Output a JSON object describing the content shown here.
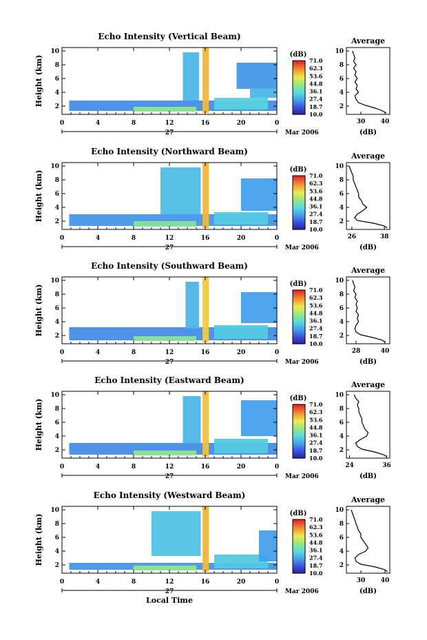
{
  "chart_data": [
    {
      "type": "heatmap",
      "title": "Echo Intensity (Vertical Beam)",
      "ylabel": "Height (km)",
      "x_ticks": [
        "0",
        "4",
        "8",
        "12",
        "16",
        "20",
        "0"
      ],
      "y_ticks": [
        "2",
        "4",
        "6",
        "8",
        "10"
      ],
      "xlim": [
        0,
        24
      ],
      "ylim": [
        0.8,
        10.5
      ],
      "date_day": "27",
      "date_month": "Mar 2006",
      "colorbar": {
        "label": "(dB)",
        "ticks": [
          "71.0",
          "62.3",
          "53.6",
          "44.8",
          "36.1",
          "27.4",
          "18.7",
          "10.0"
        ]
      },
      "average": {
        "title": "Average",
        "xlabel": "(dB)",
        "x_ticks": [
          "30",
          "40"
        ],
        "xlim": [
          24,
          42
        ],
        "y_ticks": [
          "2",
          "4",
          "6",
          "8",
          "10"
        ],
        "profile_x": [
          40.5,
          39,
          36,
          32,
          29,
          28,
          27.5,
          29,
          28,
          28.5,
          27.5,
          28.5,
          27.5,
          28,
          27,
          28,
          27,
          27.5,
          27,
          26.5
        ],
        "profile_y": [
          1,
          1.3,
          1.7,
          2.1,
          2.5,
          3,
          3.5,
          4,
          4.5,
          5,
          5.5,
          6,
          6.5,
          7,
          7.5,
          8,
          8.5,
          9,
          9.5,
          10
        ]
      },
      "clouds": [
        {
          "x0": 0.8,
          "x1": 24,
          "y0": 1.3,
          "y1": 2.8,
          "v": 25
        },
        {
          "x0": 8,
          "x1": 15,
          "y0": 1.2,
          "y1": 1.9,
          "v": 43
        },
        {
          "x0": 13.5,
          "x1": 15.3,
          "y0": 2.8,
          "y1": 9.8,
          "v": 30
        },
        {
          "x0": 15.7,
          "x1": 16.4,
          "y0": 1,
          "y1": 10.5,
          "v": 58
        },
        {
          "x0": 17,
          "x1": 23,
          "y0": 1.5,
          "y1": 3.2,
          "v": 34
        },
        {
          "x0": 19.5,
          "x1": 24,
          "y0": 4.5,
          "y1": 8.3,
          "v": 26
        },
        {
          "x0": 21,
          "x1": 24,
          "y0": 3.2,
          "y1": 4.6,
          "v": 30
        }
      ]
    },
    {
      "type": "heatmap",
      "title": "Echo Intensity (Northward Beam)",
      "ylabel": "Height (km)",
      "x_ticks": [
        "0",
        "4",
        "8",
        "12",
        "16",
        "20",
        "0"
      ],
      "y_ticks": [
        "2",
        "4",
        "6",
        "8",
        "10"
      ],
      "xlim": [
        0,
        24
      ],
      "ylim": [
        0.8,
        10.5
      ],
      "date_day": "27",
      "date_month": "Mar 2006",
      "colorbar": {
        "label": "(dB)",
        "ticks": [
          "71.0",
          "62.3",
          "53.6",
          "44.8",
          "36.1",
          "27.4",
          "18.7",
          "10.0"
        ]
      },
      "average": {
        "title": "Average",
        "xlabel": "(dB)",
        "x_ticks": [
          "26",
          "38"
        ],
        "xlim": [
          24,
          40
        ],
        "y_ticks": [
          "2",
          "4",
          "6",
          "8",
          "10"
        ],
        "profile_x": [
          39,
          38,
          34,
          28,
          27,
          28,
          30,
          31.5,
          30,
          29.5,
          28.5,
          28.5,
          28,
          27.5,
          27,
          26.5,
          26.5,
          26,
          25.5,
          25
        ],
        "profile_y": [
          1,
          1.3,
          1.7,
          2.1,
          2.5,
          3,
          3.5,
          4,
          4.5,
          5,
          5.5,
          6,
          6.5,
          7,
          7.5,
          8,
          8.5,
          9,
          9.5,
          10
        ]
      },
      "clouds": [
        {
          "x0": 0.8,
          "x1": 24,
          "y0": 1.3,
          "y1": 3,
          "v": 26
        },
        {
          "x0": 8,
          "x1": 15,
          "y0": 1.2,
          "y1": 2,
          "v": 42
        },
        {
          "x0": 11,
          "x1": 15.5,
          "y0": 3,
          "y1": 9.8,
          "v": 31
        },
        {
          "x0": 15.7,
          "x1": 16.4,
          "y0": 1,
          "y1": 10.5,
          "v": 58
        },
        {
          "x0": 17,
          "x1": 23,
          "y0": 1.5,
          "y1": 3.3,
          "v": 33
        },
        {
          "x0": 20,
          "x1": 24,
          "y0": 3.5,
          "y1": 8.2,
          "v": 27
        }
      ]
    },
    {
      "type": "heatmap",
      "title": "Echo Intensity (Southward Beam)",
      "ylabel": "Height (km)",
      "x_ticks": [
        "0",
        "4",
        "8",
        "12",
        "16",
        "20",
        "0"
      ],
      "y_ticks": [
        "2",
        "4",
        "6",
        "8",
        "10"
      ],
      "xlim": [
        0,
        24
      ],
      "ylim": [
        0.8,
        10.5
      ],
      "date_day": "27",
      "date_month": "Mar 2006",
      "colorbar": {
        "label": "(dB)",
        "ticks": [
          "71.0",
          "62.3",
          "53.6",
          "44.8",
          "36.1",
          "27.4",
          "18.7",
          "10.0"
        ]
      },
      "average": {
        "title": "Average",
        "xlabel": "(dB)",
        "x_ticks": [
          "28",
          "40"
        ],
        "xlim": [
          24,
          42
        ],
        "y_ticks": [
          "2",
          "4",
          "6",
          "8",
          "10"
        ],
        "profile_x": [
          40,
          39,
          35,
          30,
          28,
          27.5,
          28,
          29,
          28.5,
          29,
          28,
          28.5,
          28,
          28.5,
          27.5,
          28,
          27,
          27.5,
          27,
          26.5
        ],
        "profile_y": [
          1,
          1.3,
          1.7,
          2.1,
          2.5,
          3,
          3.5,
          4,
          4.5,
          5,
          5.5,
          6,
          6.5,
          7,
          7.5,
          8,
          8.5,
          9,
          9.5,
          10
        ]
      },
      "clouds": [
        {
          "x0": 0.8,
          "x1": 24,
          "y0": 1.3,
          "y1": 3.2,
          "v": 25
        },
        {
          "x0": 8,
          "x1": 15,
          "y0": 1.2,
          "y1": 1.9,
          "v": 42
        },
        {
          "x0": 13.8,
          "x1": 15.3,
          "y0": 3,
          "y1": 9.8,
          "v": 30
        },
        {
          "x0": 15.7,
          "x1": 16.4,
          "y0": 1,
          "y1": 10.5,
          "v": 56
        },
        {
          "x0": 17,
          "x1": 23,
          "y0": 1.5,
          "y1": 3.5,
          "v": 33
        },
        {
          "x0": 20,
          "x1": 24,
          "y0": 3.8,
          "y1": 8.3,
          "v": 27
        }
      ]
    },
    {
      "type": "heatmap",
      "title": "Echo Intensity (Eastward Beam)",
      "ylabel": "Height (km)",
      "x_ticks": [
        "0",
        "4",
        "8",
        "12",
        "16",
        "20",
        "0"
      ],
      "y_ticks": [
        "2",
        "4",
        "6",
        "8",
        "10"
      ],
      "xlim": [
        0,
        24
      ],
      "ylim": [
        0.8,
        10.5
      ],
      "date_day": "27",
      "date_month": "Mar 2006",
      "colorbar": {
        "label": "(dB)",
        "ticks": [
          "71.0",
          "62.3",
          "53.6",
          "44.8",
          "36.1",
          "27.4",
          "18.7",
          "10.0"
        ]
      },
      "average": {
        "title": "Average",
        "xlabel": "(dB)",
        "x_ticks": [
          "24",
          "36"
        ],
        "xlim": [
          23,
          37
        ],
        "y_ticks": [
          "2",
          "4",
          "6",
          "8",
          "10"
        ],
        "profile_x": [
          36,
          35,
          32,
          28,
          26.5,
          26,
          27.5,
          29.5,
          30,
          29,
          28.5,
          28,
          28,
          27.5,
          27,
          27,
          26.5,
          27,
          26,
          25.5
        ],
        "profile_y": [
          1,
          1.3,
          1.7,
          2.1,
          2.5,
          3,
          3.5,
          4,
          4.5,
          5,
          5.5,
          6,
          6.5,
          7,
          7.5,
          8,
          8.5,
          9,
          9.5,
          10
        ]
      },
      "clouds": [
        {
          "x0": 0.8,
          "x1": 24,
          "y0": 1.3,
          "y1": 3,
          "v": 25
        },
        {
          "x0": 8,
          "x1": 15,
          "y0": 1.2,
          "y1": 1.9,
          "v": 43
        },
        {
          "x0": 13.5,
          "x1": 15.5,
          "y0": 3,
          "y1": 9.8,
          "v": 30
        },
        {
          "x0": 15.7,
          "x1": 16.4,
          "y0": 1,
          "y1": 10.5,
          "v": 57
        },
        {
          "x0": 17,
          "x1": 23,
          "y0": 1.5,
          "y1": 3.6,
          "v": 33
        },
        {
          "x0": 20,
          "x1": 24,
          "y0": 4,
          "y1": 9.2,
          "v": 27
        }
      ]
    },
    {
      "type": "heatmap",
      "title": "Echo Intensity (Westward Beam)",
      "ylabel": "Height (km)",
      "x_ticks": [
        "0",
        "4",
        "8",
        "12",
        "16",
        "20",
        "0"
      ],
      "y_ticks": [
        "2",
        "4",
        "6",
        "8",
        "10"
      ],
      "xlim": [
        0,
        24
      ],
      "ylim": [
        0.8,
        10.5
      ],
      "date_day": "27",
      "date_month": "Mar 2006",
      "xlabel": "Local Time",
      "colorbar": {
        "label": "(dB)",
        "ticks": [
          "71.0",
          "62.3",
          "53.6",
          "44.8",
          "36.1",
          "27.4",
          "18.7",
          "10.0"
        ]
      },
      "average": {
        "title": "Average",
        "xlabel": "(dB)",
        "x_ticks": [
          "30",
          "40"
        ],
        "xlim": [
          24,
          42
        ],
        "y_ticks": [
          "2",
          "4",
          "6",
          "8",
          "10"
        ],
        "profile_x": [
          41,
          40,
          36,
          30,
          28,
          27.5,
          29,
          32,
          33,
          32,
          31,
          30,
          30,
          29,
          28.5,
          28,
          27.5,
          27,
          26.5,
          26
        ],
        "profile_y": [
          1,
          1.3,
          1.7,
          2.1,
          2.5,
          3,
          3.5,
          4,
          4.5,
          5,
          5.5,
          6,
          6.5,
          7,
          7.5,
          8,
          8.5,
          9,
          9.5,
          10
        ]
      },
      "clouds": [
        {
          "x0": 0.8,
          "x1": 24,
          "y0": 1.3,
          "y1": 2.3,
          "v": 26
        },
        {
          "x0": 8,
          "x1": 15,
          "y0": 1.2,
          "y1": 1.9,
          "v": 44
        },
        {
          "x0": 10,
          "x1": 15.5,
          "y0": 3.3,
          "y1": 9.8,
          "v": 32
        },
        {
          "x0": 15.7,
          "x1": 16.4,
          "y0": 1,
          "y1": 10.5,
          "v": 58
        },
        {
          "x0": 17,
          "x1": 23,
          "y0": 1.5,
          "y1": 3.5,
          "v": 33
        },
        {
          "x0": 22,
          "x1": 24,
          "y0": 2.5,
          "y1": 7,
          "v": 27
        }
      ]
    }
  ]
}
